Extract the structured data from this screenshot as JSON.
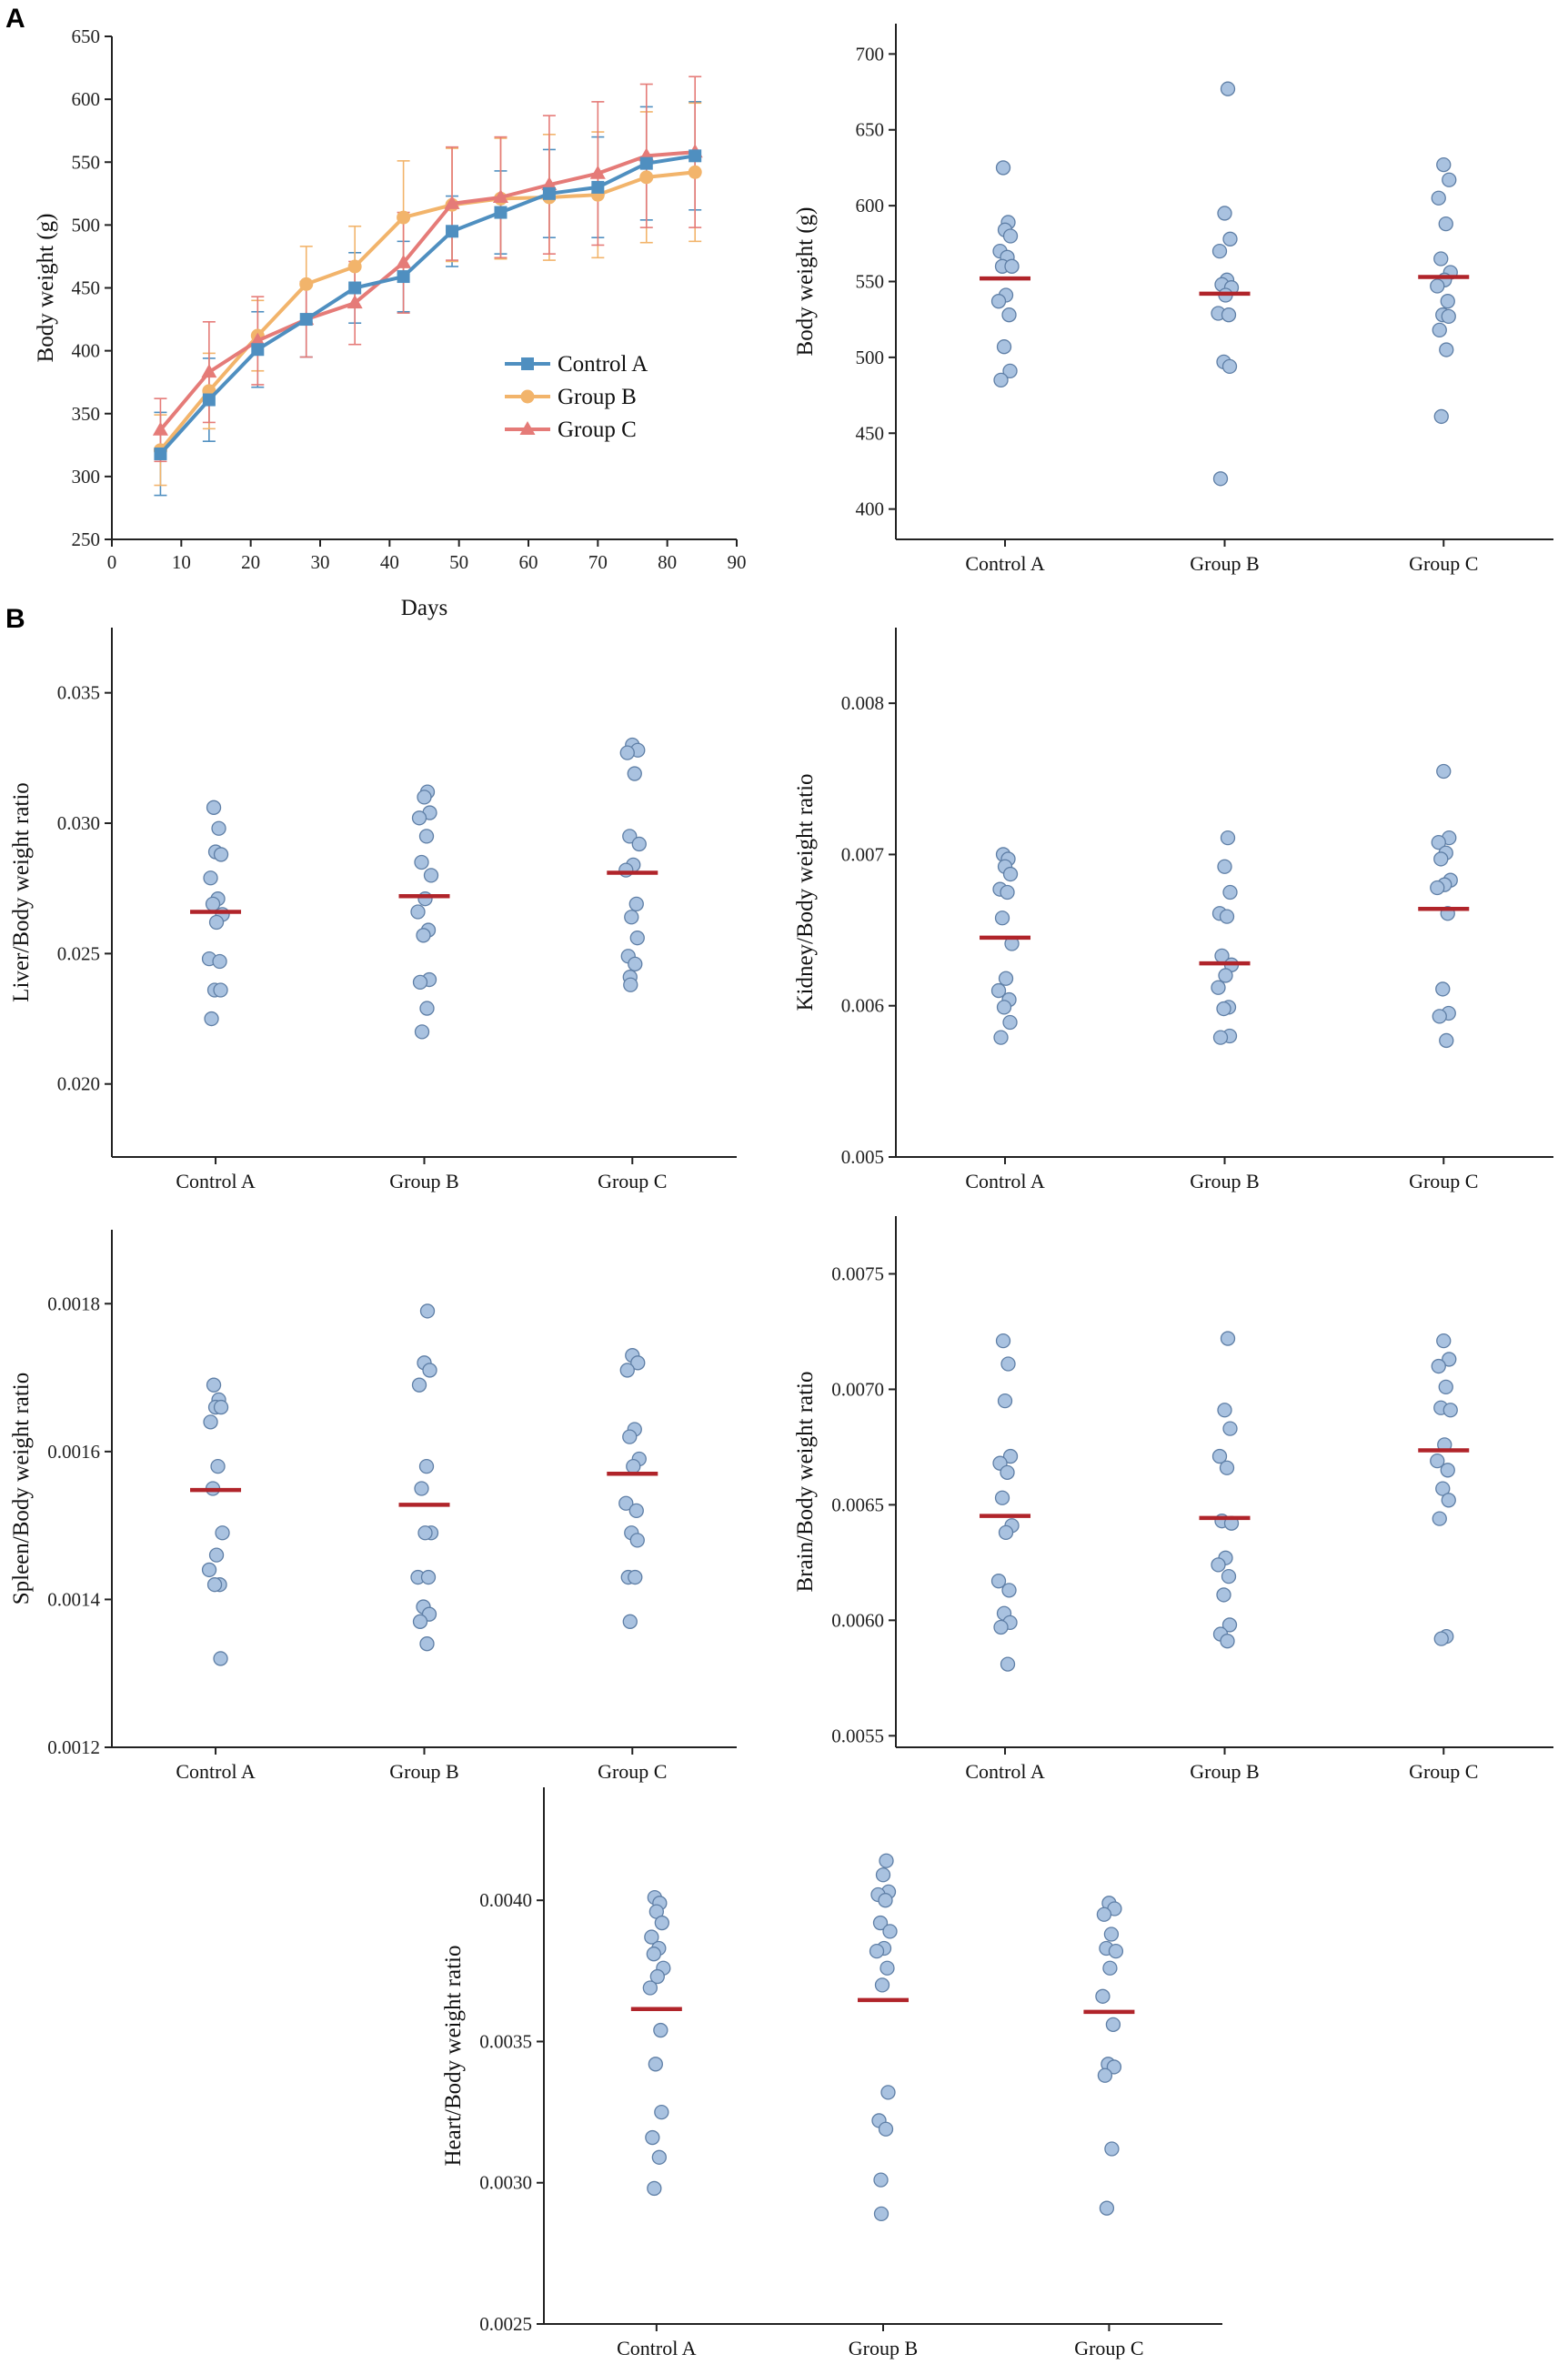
{
  "panels": [
    {
      "label": "A"
    },
    {
      "label": "B"
    }
  ],
  "colors": {
    "control_a": "#4f8fc0",
    "group_b": "#f2b46b",
    "group_c": "#e57b78",
    "dot_fill": "#a9c2e0",
    "dot_stroke": "#5f7fa6",
    "mean": "#b0242a"
  },
  "chart_data": [
    {
      "id": "bw-line",
      "type": "line",
      "xlabel": "Days",
      "ylabel": "Body weight (g)",
      "xlim": [
        0,
        90
      ],
      "ylim": [
        250,
        650
      ],
      "xticks": [
        0,
        10,
        20,
        30,
        40,
        50,
        60,
        70,
        80,
        90
      ],
      "yticks": [
        250,
        300,
        350,
        400,
        450,
        500,
        550,
        600,
        650
      ],
      "x": [
        7,
        14,
        21,
        28,
        35,
        42,
        49,
        56,
        63,
        70,
        77,
        84
      ],
      "legend_position": "center-right",
      "series": [
        {
          "name": "Control A",
          "color_key": "control_a",
          "marker": "square",
          "values": [
            318,
            361,
            401,
            425,
            450,
            459,
            495,
            510,
            525,
            530,
            549,
            555
          ],
          "errors": [
            33,
            33,
            30,
            30,
            28,
            28,
            28,
            33,
            35,
            40,
            45,
            43
          ]
        },
        {
          "name": "Group B",
          "color_key": "group_b",
          "marker": "circle",
          "values": [
            321,
            368,
            412,
            453,
            467,
            506,
            516,
            521,
            522,
            524,
            538,
            542
          ],
          "errors": [
            28,
            30,
            28,
            30,
            32,
            45,
            45,
            48,
            50,
            50,
            52,
            55
          ]
        },
        {
          "name": "Group C",
          "color_key": "group_c",
          "marker": "triangle",
          "values": [
            337,
            383,
            408,
            425,
            438,
            470,
            517,
            522,
            532,
            541,
            555,
            558
          ],
          "errors": [
            25,
            40,
            35,
            30,
            33,
            40,
            45,
            48,
            55,
            57,
            57,
            60
          ]
        }
      ]
    },
    {
      "id": "bw-scatter",
      "type": "scatter",
      "ylabel": "Body weight (g)",
      "ylim": [
        380,
        720
      ],
      "yticks": [
        400,
        450,
        500,
        550,
        600,
        650,
        700
      ],
      "categories": [
        "Control A",
        "Group B",
        "Group C"
      ],
      "points": [
        [
          625,
          589,
          584,
          580,
          570,
          566,
          560,
          560,
          541,
          537,
          528,
          507,
          491,
          485
        ],
        [
          677,
          595,
          578,
          570,
          551,
          548,
          546,
          541,
          529,
          528,
          497,
          494,
          420
        ],
        [
          627,
          617,
          605,
          588,
          565,
          556,
          551,
          547,
          537,
          528,
          527,
          518,
          505,
          461
        ]
      ],
      "means": [
        552,
        542,
        553
      ]
    },
    {
      "id": "liver",
      "type": "scatter",
      "ylabel": "Liver/Body weight ratio",
      "ylim": [
        0.0172,
        0.0375
      ],
      "yticks": [
        "0.020",
        "0.025",
        "0.030",
        "0.035"
      ],
      "ytick_values": [
        0.02,
        0.025,
        0.03,
        0.035
      ],
      "categories": [
        "Control A",
        "Group B",
        "Group C"
      ],
      "points": [
        [
          0.0306,
          0.0298,
          0.0289,
          0.0288,
          0.0279,
          0.0271,
          0.0269,
          0.0265,
          0.0262,
          0.0248,
          0.0247,
          0.0236,
          0.0236,
          0.0225
        ],
        [
          0.0312,
          0.031,
          0.0304,
          0.0302,
          0.0295,
          0.0285,
          0.028,
          0.0271,
          0.0266,
          0.0259,
          0.0257,
          0.024,
          0.0239,
          0.0229,
          0.022
        ],
        [
          0.033,
          0.0328,
          0.0327,
          0.0319,
          0.0295,
          0.0292,
          0.0284,
          0.0282,
          0.0269,
          0.0264,
          0.0256,
          0.0249,
          0.0246,
          0.0241,
          0.0238
        ]
      ],
      "means": [
        0.0266,
        0.0272,
        0.0281
      ]
    },
    {
      "id": "kidney",
      "type": "scatter",
      "ylabel": "Kidney/Body weight ratio",
      "ylim": [
        0.005,
        0.0085
      ],
      "yticks": [
        "0.005",
        "0.006",
        "0.007",
        "0.008"
      ],
      "ytick_values": [
        0.005,
        0.006,
        0.007,
        0.008
      ],
      "categories": [
        "Control A",
        "Group B",
        "Group C"
      ],
      "points": [
        [
          0.007,
          0.00697,
          0.00692,
          0.00687,
          0.00677,
          0.00675,
          0.00658,
          0.00641,
          0.00618,
          0.0061,
          0.00604,
          0.00599,
          0.00589,
          0.00579
        ],
        [
          0.00711,
          0.00692,
          0.00675,
          0.00661,
          0.00659,
          0.00633,
          0.00627,
          0.0062,
          0.00612,
          0.00599,
          0.00598,
          0.0058,
          0.00579
        ],
        [
          0.00755,
          0.00711,
          0.00708,
          0.00701,
          0.00697,
          0.00683,
          0.0068,
          0.00678,
          0.00661,
          0.00611,
          0.00595,
          0.00593,
          0.00577
        ]
      ],
      "means": [
        0.00645,
        0.00628,
        0.00664
      ]
    },
    {
      "id": "spleen",
      "type": "scatter",
      "ylabel": "Spleen/Body weight ratio",
      "ylim": [
        0.0012,
        0.0019
      ],
      "yticks": [
        "0.0012",
        "0.0014",
        "0.0016",
        "0.0018"
      ],
      "ytick_values": [
        0.0012,
        0.0014,
        0.0016,
        0.0018
      ],
      "categories": [
        "Control A",
        "Group B",
        "Group C"
      ],
      "points": [
        [
          0.00169,
          0.00167,
          0.00166,
          0.00166,
          0.00164,
          0.00158,
          0.00155,
          0.00149,
          0.00146,
          0.00144,
          0.00142,
          0.00142,
          0.00132
        ],
        [
          0.00179,
          0.00172,
          0.00171,
          0.00169,
          0.00158,
          0.00155,
          0.00149,
          0.00149,
          0.00143,
          0.00143,
          0.00139,
          0.00138,
          0.00137,
          0.00134
        ],
        [
          0.00173,
          0.00172,
          0.00171,
          0.00163,
          0.00162,
          0.00159,
          0.00158,
          0.00153,
          0.00152,
          0.00149,
          0.00148,
          0.00143,
          0.00143,
          0.00137
        ]
      ],
      "means": [
        0.001548,
        0.001528,
        0.00157
      ]
    },
    {
      "id": "brain",
      "type": "scatter",
      "ylabel": "Brain/Body weight ratio",
      "ylim": [
        0.00545,
        0.00775
      ],
      "yticks": [
        "0.0055",
        "0.0060",
        "0.0065",
        "0.0070",
        "0.0075"
      ],
      "ytick_values": [
        0.0055,
        0.006,
        0.0065,
        0.007,
        0.0075
      ],
      "categories": [
        "Control A",
        "Group B",
        "Group C"
      ],
      "points": [
        [
          0.00721,
          0.00711,
          0.00695,
          0.00671,
          0.00668,
          0.00664,
          0.00653,
          0.00641,
          0.00638,
          0.00617,
          0.00613,
          0.00603,
          0.00599,
          0.00597,
          0.00581
        ],
        [
          0.00722,
          0.00691,
          0.00683,
          0.00671,
          0.00666,
          0.00643,
          0.00642,
          0.00627,
          0.00624,
          0.00619,
          0.00611,
          0.00598,
          0.00594,
          0.00591
        ],
        [
          0.00721,
          0.00713,
          0.0071,
          0.00701,
          0.00692,
          0.00691,
          0.00676,
          0.00669,
          0.00665,
          0.00657,
          0.00652,
          0.00644,
          0.00593,
          0.00592
        ]
      ],
      "means": [
        0.006452,
        0.006443,
        0.006736
      ]
    },
    {
      "id": "heart",
      "type": "scatter",
      "ylabel": "Heart/Body weight ratio",
      "ylim": [
        0.0025,
        0.0044
      ],
      "yticks": [
        "0.0025",
        "0.0030",
        "0.0035",
        "0.0040"
      ],
      "ytick_values": [
        0.0025,
        0.003,
        0.0035,
        0.004
      ],
      "categories": [
        "Control A",
        "Group B",
        "Group C"
      ],
      "points": [
        [
          0.00401,
          0.00399,
          0.00396,
          0.00392,
          0.00387,
          0.00383,
          0.00381,
          0.00376,
          0.00373,
          0.00369,
          0.00354,
          0.00342,
          0.00325,
          0.00316,
          0.00309,
          0.00298
        ],
        [
          0.00414,
          0.00409,
          0.00403,
          0.00402,
          0.004,
          0.00392,
          0.00389,
          0.00383,
          0.00382,
          0.00376,
          0.0037,
          0.00332,
          0.00322,
          0.00319,
          0.00301,
          0.00289
        ],
        [
          0.00399,
          0.00397,
          0.00395,
          0.00388,
          0.00383,
          0.00382,
          0.00376,
          0.00366,
          0.00356,
          0.00342,
          0.00341,
          0.00338,
          0.00312,
          0.00291
        ]
      ],
      "means": [
        0.003615,
        0.003647,
        0.003605
      ]
    }
  ]
}
